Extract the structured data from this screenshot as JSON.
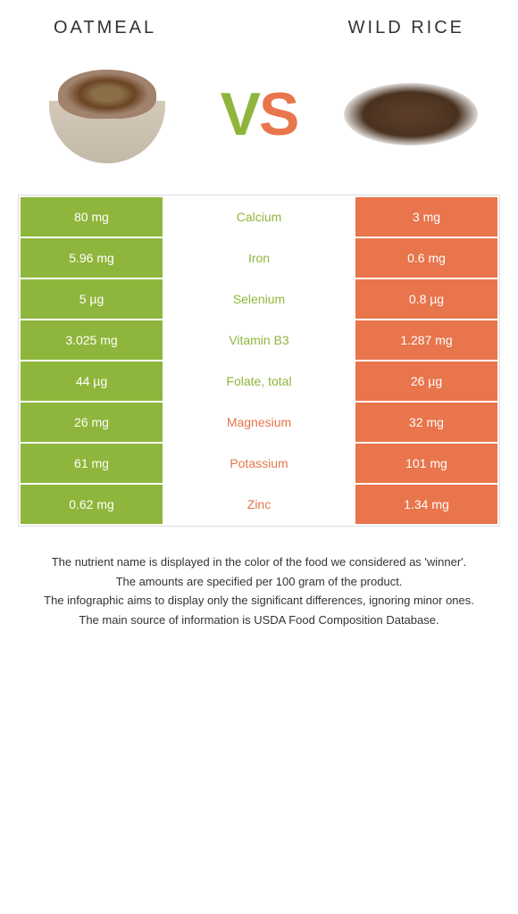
{
  "header": {
    "left_title": "OATMEAL",
    "right_title": "WILD RICE"
  },
  "vs": {
    "v": "V",
    "s": "S"
  },
  "colors": {
    "left": "#8fb63c",
    "right": "#e8754b",
    "background": "#ffffff"
  },
  "comparison": {
    "type": "table",
    "columns": [
      "oatmeal_value",
      "nutrient",
      "wildrice_value"
    ],
    "rows": [
      {
        "left": "80 mg",
        "mid": "Calcium",
        "right": "3 mg",
        "winner": "left"
      },
      {
        "left": "5.96 mg",
        "mid": "Iron",
        "right": "0.6 mg",
        "winner": "left"
      },
      {
        "left": "5 µg",
        "mid": "Selenium",
        "right": "0.8 µg",
        "winner": "left"
      },
      {
        "left": "3.025 mg",
        "mid": "Vitamin B3",
        "right": "1.287 mg",
        "winner": "left"
      },
      {
        "left": "44 µg",
        "mid": "Folate, total",
        "right": "26 µg",
        "winner": "left"
      },
      {
        "left": "26 mg",
        "mid": "Magnesium",
        "right": "32 mg",
        "winner": "right"
      },
      {
        "left": "61 mg",
        "mid": "Potassium",
        "right": "101 mg",
        "winner": "right"
      },
      {
        "left": "0.62 mg",
        "mid": "Zinc",
        "right": "1.34 mg",
        "winner": "right"
      }
    ]
  },
  "footer": {
    "line1": "The nutrient name is displayed in the color of the food we considered as 'winner'.",
    "line2": "The amounts are specified per 100 gram of the product.",
    "line3": "The infographic aims to display only the significant differences, ignoring minor ones.",
    "line4": "The main source of information is USDA Food Composition Database."
  }
}
